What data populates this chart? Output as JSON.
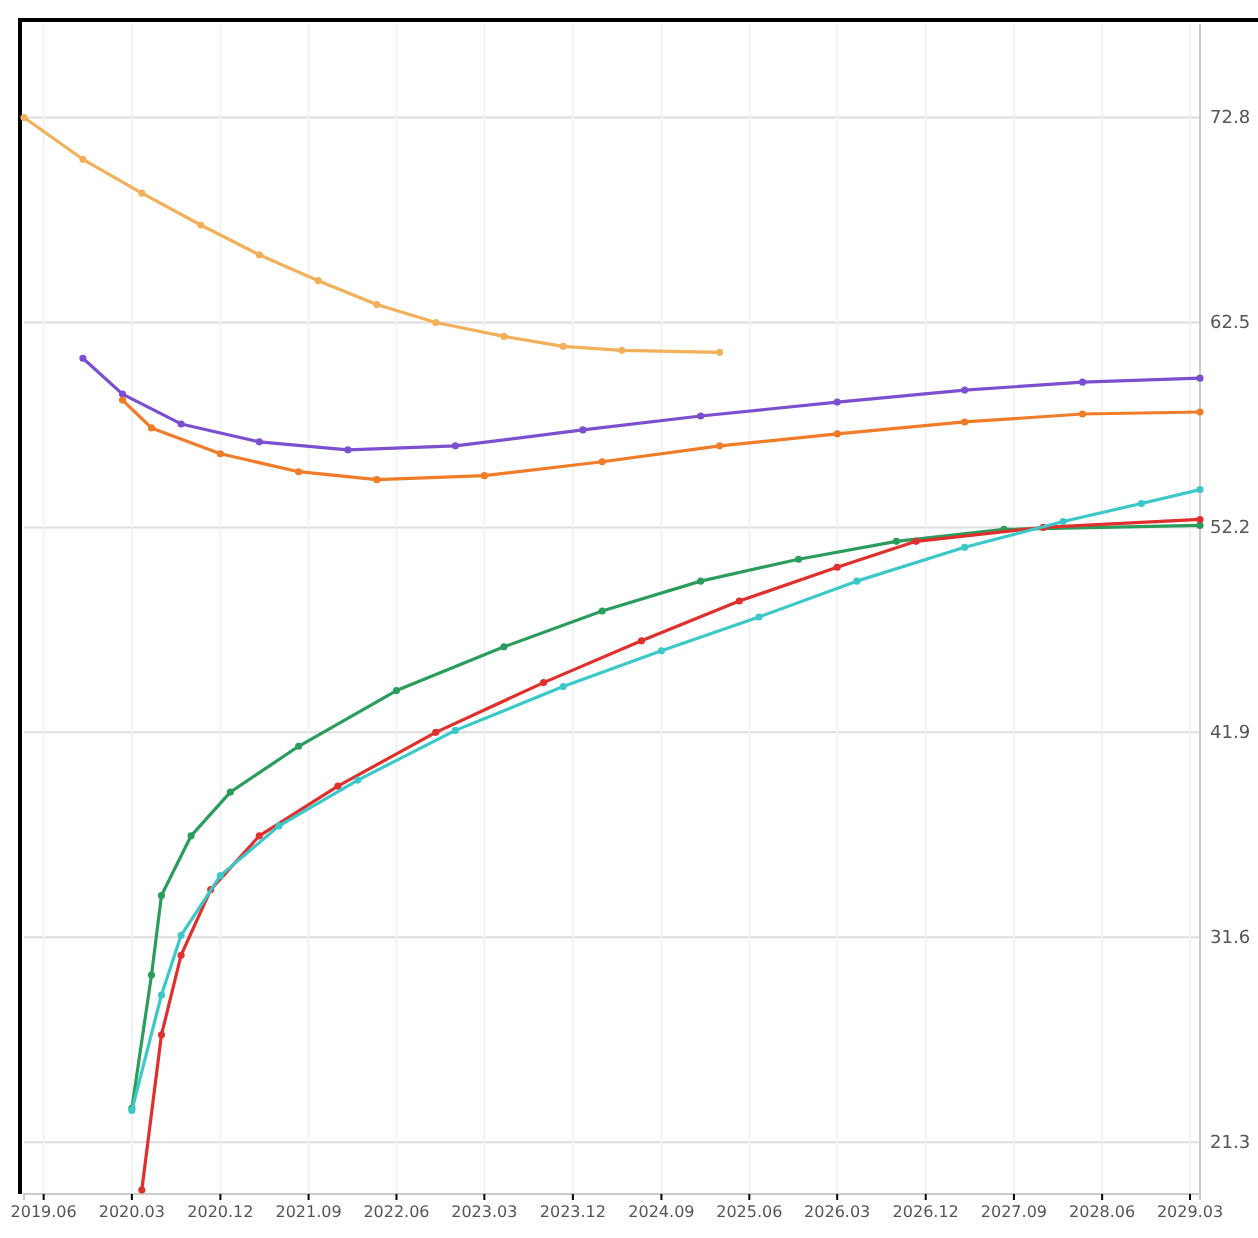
{
  "chart_data": {
    "type": "line",
    "marker": "circle",
    "grid": true,
    "xlim": [
      "2019-04",
      "2029-04"
    ],
    "xticks": [
      {
        "value": "2019-06",
        "label": "2019.06"
      },
      {
        "value": "2020-03",
        "label": "2020.03"
      },
      {
        "value": "2020-12",
        "label": "2020.12"
      },
      {
        "value": "2021-09",
        "label": "2021.09"
      },
      {
        "value": "2022-06",
        "label": "2022.06"
      },
      {
        "value": "2023-03",
        "label": "2023.03"
      },
      {
        "value": "2023-12",
        "label": "2023.12"
      },
      {
        "value": "2024-09",
        "label": "2024.09"
      },
      {
        "value": "2025-06",
        "label": "2025.06"
      },
      {
        "value": "2026-03",
        "label": "2026.03"
      },
      {
        "value": "2026-12",
        "label": "2026.12"
      },
      {
        "value": "2027-09",
        "label": "2027.09"
      },
      {
        "value": "2028-06",
        "label": "2028.06"
      },
      {
        "value": "2029-03",
        "label": "2029.03"
      }
    ],
    "ylim": [
      18.7,
      77.5
    ],
    "yticks": [
      21.3,
      31.6,
      41.9,
      52.2,
      62.5,
      72.8
    ],
    "series": [
      {
        "color": "#f2b05a",
        "x": [
          "2019-04",
          "2019-10",
          "2020-04",
          "2020-10",
          "2021-04",
          "2021-10",
          "2022-04",
          "2022-10",
          "2023-05",
          "2023-11",
          "2024-05",
          "2025-03"
        ],
        "values": [
          72.8,
          70.7,
          69.0,
          67.4,
          65.9,
          64.6,
          63.4,
          62.5,
          61.8,
          61.3,
          61.1,
          61.0
        ]
      },
      {
        "color": "#7b4fd0",
        "x": [
          "2019-10",
          "2020-02",
          "2020-08",
          "2021-04",
          "2022-01",
          "2022-12",
          "2024-01",
          "2025-01",
          "2026-03",
          "2027-04",
          "2028-04",
          "2029-04"
        ],
        "values": [
          60.7,
          58.9,
          57.4,
          56.5,
          56.1,
          56.3,
          57.1,
          57.8,
          58.5,
          59.1,
          59.5,
          59.7
        ]
      },
      {
        "color": "#f07c28",
        "x": [
          "2020-02",
          "2020-05",
          "2020-12",
          "2021-08",
          "2022-04",
          "2023-03",
          "2024-03",
          "2025-03",
          "2026-03",
          "2027-04",
          "2028-04",
          "2029-04"
        ],
        "values": [
          58.6,
          57.2,
          55.9,
          55.0,
          54.6,
          54.8,
          55.5,
          56.3,
          56.9,
          57.5,
          57.9,
          58.0
        ]
      },
      {
        "color": "#2a9d5c",
        "x": [
          "2020-03",
          "2020-05",
          "2020-06",
          "2020-09",
          "2021-01",
          "2021-08",
          "2022-06",
          "2023-05",
          "2024-03",
          "2025-01",
          "2025-11",
          "2026-09",
          "2027-08",
          "2029-04"
        ],
        "values": [
          23.0,
          29.7,
          33.7,
          36.7,
          38.9,
          41.2,
          44.0,
          46.2,
          48.0,
          49.5,
          50.6,
          51.5,
          52.1,
          52.3
        ]
      },
      {
        "color": "#e0302e",
        "x": [
          "2020-04",
          "2020-06",
          "2020-08",
          "2020-11",
          "2021-04",
          "2021-12",
          "2022-10",
          "2023-09",
          "2024-07",
          "2025-05",
          "2026-03",
          "2026-11",
          "2027-12",
          "2029-04"
        ],
        "values": [
          18.9,
          26.7,
          30.7,
          34.0,
          36.7,
          39.2,
          41.9,
          44.4,
          46.5,
          48.5,
          50.2,
          51.5,
          52.2,
          52.6
        ]
      },
      {
        "color": "#3cc8c8",
        "x": [
          "2020-03",
          "2020-06",
          "2020-08",
          "2020-12",
          "2021-06",
          "2022-02",
          "2022-12",
          "2023-11",
          "2024-09",
          "2025-07",
          "2026-05",
          "2027-04",
          "2028-02",
          "2028-10",
          "2029-04"
        ],
        "values": [
          22.9,
          28.7,
          31.7,
          34.7,
          37.2,
          39.5,
          42.0,
          44.2,
          46.0,
          47.7,
          49.5,
          51.2,
          52.5,
          53.4,
          54.1
        ]
      }
    ]
  }
}
